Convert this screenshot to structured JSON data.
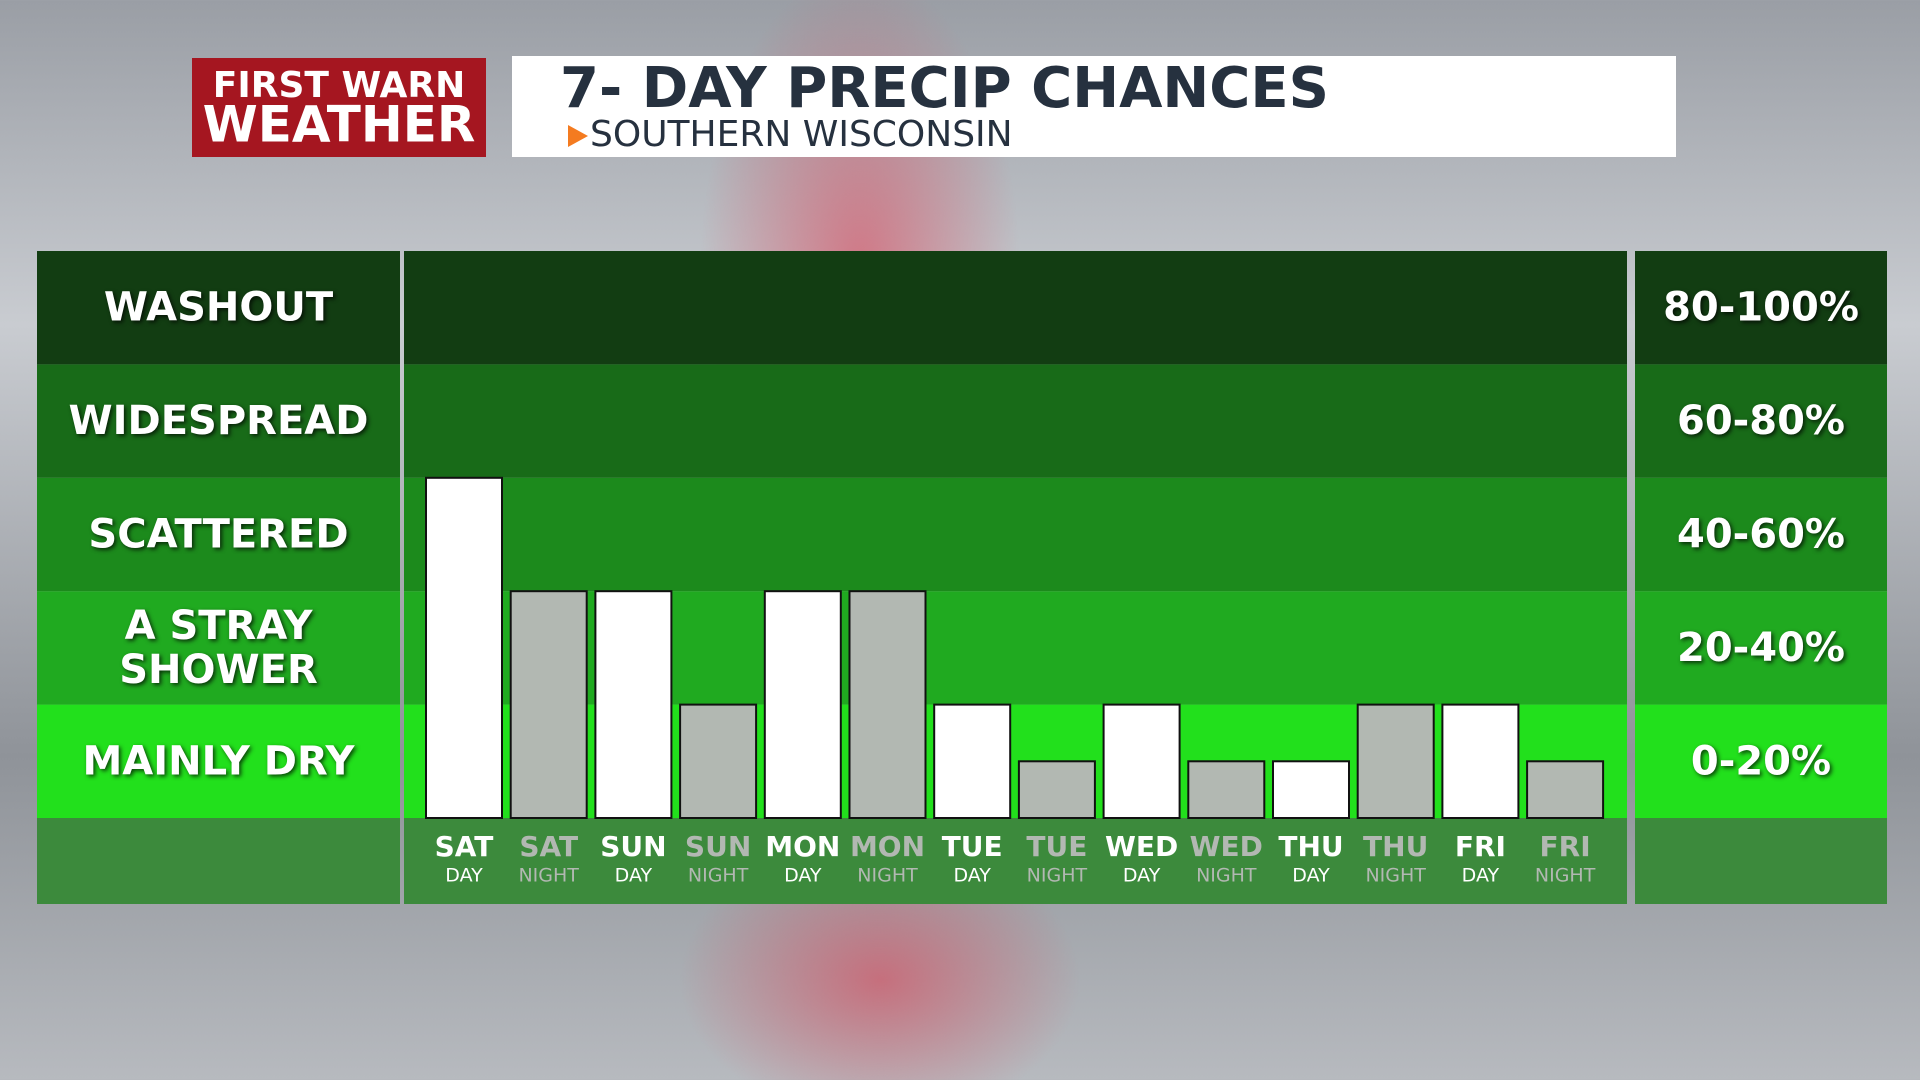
{
  "brand": {
    "line1": "FIRST WARN",
    "line2": "WEATHER"
  },
  "chart_data": {
    "type": "bar",
    "title": "7- DAY PRECIP CHANCES",
    "subtitle": "SOUTHERN WISCONSIN",
    "categories": [
      "SAT",
      "SAT",
      "SUN",
      "SUN",
      "MON",
      "MON",
      "TUE",
      "TUE",
      "WED",
      "WED",
      "THU",
      "THU",
      "FRI",
      "FRI"
    ],
    "periods": [
      "DAY",
      "NIGHT",
      "DAY",
      "NIGHT",
      "DAY",
      "NIGHT",
      "DAY",
      "NIGHT",
      "DAY",
      "NIGHT",
      "DAY",
      "NIGHT",
      "DAY",
      "NIGHT"
    ],
    "values": [
      60,
      40,
      40,
      20,
      40,
      40,
      20,
      10,
      20,
      10,
      10,
      20,
      20,
      10
    ],
    "colors": [
      "#ffffff",
      "#b2b8b2",
      "#ffffff",
      "#b2b8b2",
      "#ffffff",
      "#b2b8b2",
      "#ffffff",
      "#b2b8b2",
      "#ffffff",
      "#b2b8b2",
      "#ffffff",
      "#b2b8b2",
      "#ffffff",
      "#b2b8b2"
    ],
    "ylim": [
      0,
      100
    ],
    "bands": [
      {
        "lines": [
          "WASHOUT"
        ],
        "range": "80-100%",
        "from": 80,
        "to": 100,
        "color": "#123d12"
      },
      {
        "lines": [
          "WIDESPREAD"
        ],
        "range": "60-80%",
        "from": 60,
        "to": 80,
        "color": "#186b18"
      },
      {
        "lines": [
          "SCATTERED"
        ],
        "range": "40-60%",
        "from": 40,
        "to": 60,
        "color": "#1c8a1c"
      },
      {
        "lines": [
          "A STRAY",
          "SHOWER"
        ],
        "range": "20-40%",
        "from": 20,
        "to": 40,
        "color": "#20aa20"
      },
      {
        "lines": [
          "MAINLY DRY"
        ],
        "range": "0-20%",
        "from": 0,
        "to": 20,
        "color": "#22e01c"
      }
    ]
  }
}
